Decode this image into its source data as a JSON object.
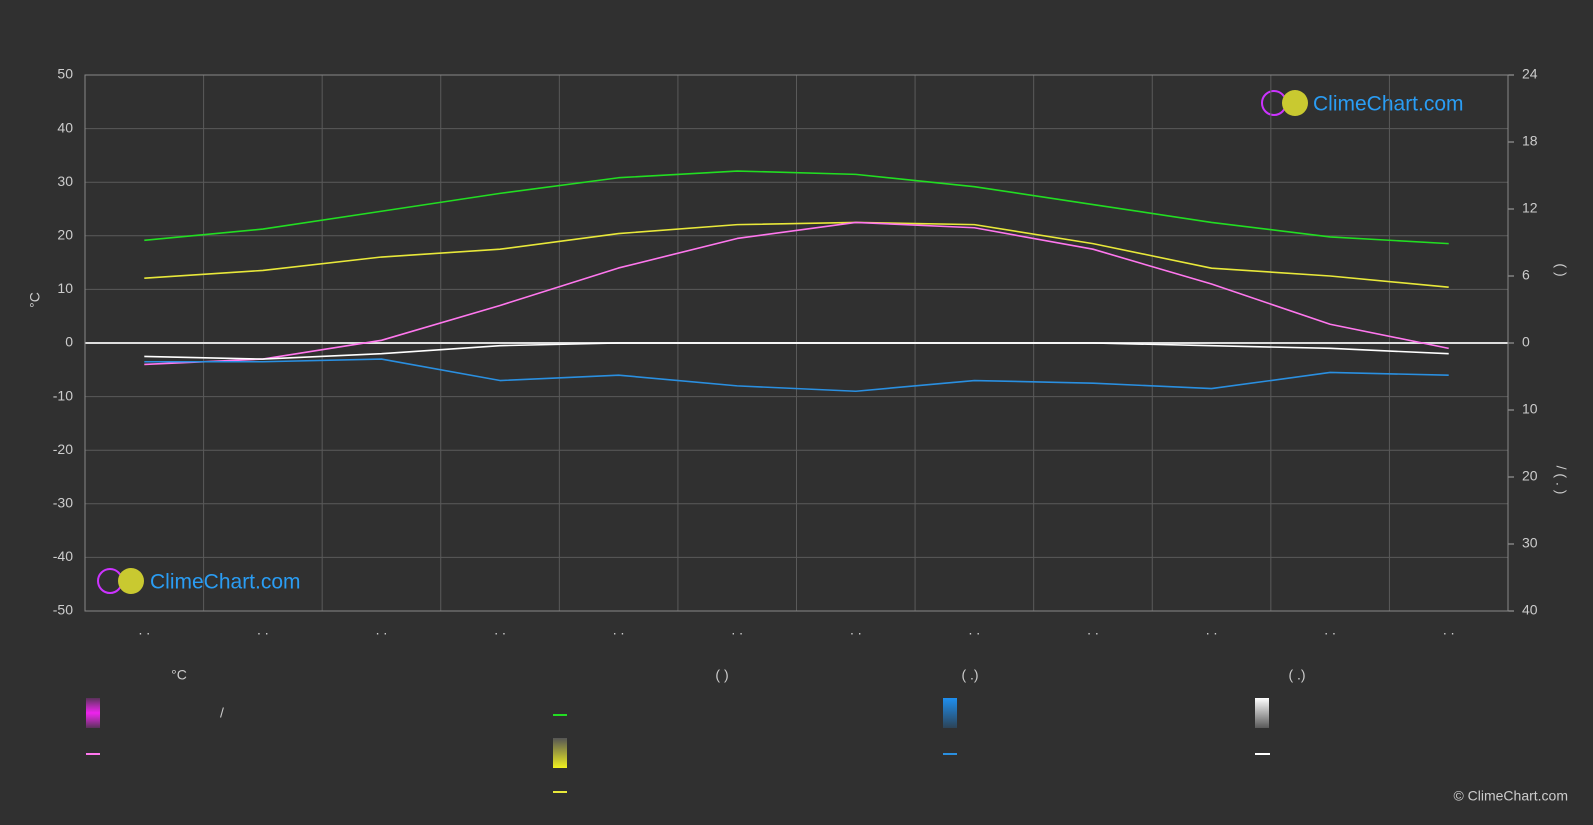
{
  "chart_data": {
    "type": "line",
    "categories": [
      ". .",
      ". .",
      ". .",
      ". .",
      ". .",
      ". .",
      ". .",
      ". .",
      ". .",
      ". .",
      ". .",
      ". ."
    ],
    "y_label": "°C",
    "y2_label": "(   )",
    "y3_label": "/   (  .  )",
    "ylim": [
      -50,
      50
    ],
    "yticks": [
      -50,
      -40,
      -30,
      -20,
      -10,
      0,
      10,
      20,
      30,
      40,
      50
    ],
    "y2lim": [
      0,
      24
    ],
    "y2ticks": [
      0,
      6,
      12,
      18,
      24
    ],
    "y3lim": [
      0,
      40
    ],
    "y3ticks": [
      10,
      20,
      30,
      40
    ],
    "grid": true,
    "series": [
      {
        "color": "#22dd22",
        "axis": "y2",
        "values": [
          9.2,
          10.2,
          11.8,
          13.4,
          14.8,
          15.4,
          15.1,
          14.0,
          12.4,
          10.8,
          9.5,
          8.9
        ]
      },
      {
        "color": "#e8e83a",
        "axis": "y2",
        "values": [
          5.8,
          6.5,
          7.7,
          8.4,
          9.8,
          10.6,
          10.8,
          10.6,
          8.9,
          6.7,
          6.0,
          5.0
        ]
      },
      {
        "color": "#ff77ee",
        "axis": "y",
        "values": [
          -4,
          -3,
          0.5,
          7,
          14,
          19.5,
          22.5,
          21.5,
          17.5,
          11,
          3.5,
          -1
        ]
      },
      {
        "color": "#ffffff",
        "axis": "y3",
        "values": [
          2,
          2.4,
          1.6,
          0.4,
          0,
          0,
          0,
          0,
          0,
          0.4,
          0.8,
          1.6
        ]
      },
      {
        "color": "#2a8fe0",
        "axis": "y3",
        "values": [
          2.8,
          2.8,
          2.4,
          5.6,
          4.8,
          6.4,
          7.2,
          5.6,
          6,
          6.8,
          4.4,
          4.8
        ]
      }
    ]
  },
  "legend": {
    "headers": [
      "°C",
      "(          )",
      "(   .)",
      "(   .)"
    ],
    "slash": "/"
  },
  "logo": "ClimeChart.com",
  "copyright": "© ClimeChart.com"
}
